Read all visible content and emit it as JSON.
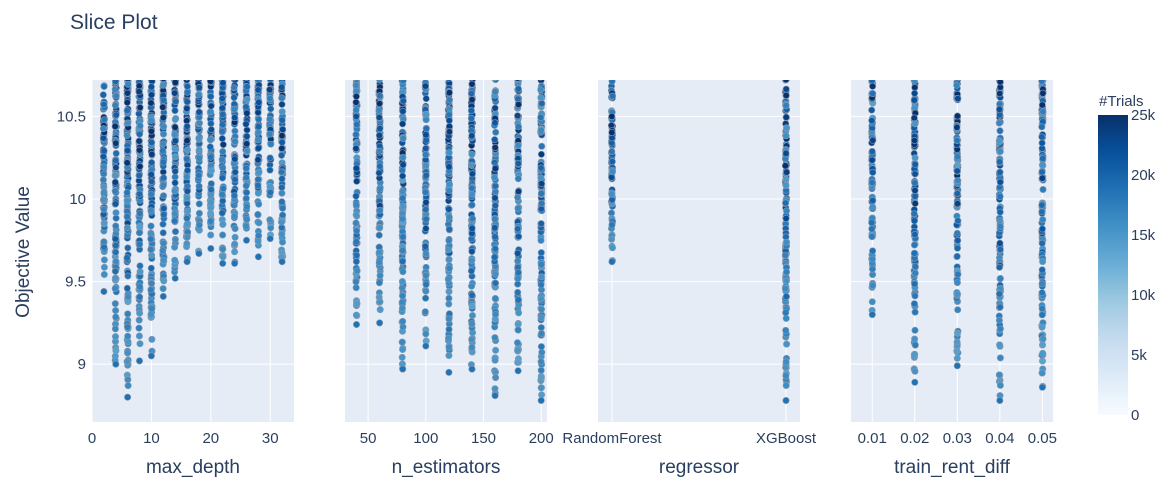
{
  "chart_data": {
    "type": "scatter",
    "title": "Slice Plot",
    "ylabel": "Objective Value",
    "ylim": [
      8.65,
      10.72
    ],
    "y_ticks": [
      "9",
      "9.5",
      "10",
      "10.5"
    ],
    "colorbar": {
      "title": "#Trials",
      "range": [
        0,
        25000
      ],
      "tick_labels": [
        "0",
        "5k",
        "10k",
        "15k",
        "20k",
        "25k"
      ],
      "colors": [
        "#f7fbff",
        "#deebf7",
        "#c6dbef",
        "#9ecae1",
        "#6baed6",
        "#4292c6",
        "#2171b5",
        "#08519c",
        "#08306b"
      ]
    },
    "panels": [
      {
        "xlabel": "max_depth",
        "x_axis": "linear",
        "xlim": [
          0,
          34
        ],
        "x_ticks": [
          "0",
          "10",
          "20",
          "30"
        ],
        "columns": [
          {
            "x": 2,
            "min_y": 9.44
          },
          {
            "x": 4,
            "min_y": 9.0
          },
          {
            "x": 6,
            "min_y": 8.8
          },
          {
            "x": 8,
            "min_y": 9.02
          },
          {
            "x": 10,
            "min_y": 9.05
          },
          {
            "x": 12,
            "min_y": 9.41
          },
          {
            "x": 14,
            "min_y": 9.52
          },
          {
            "x": 16,
            "min_y": 9.62
          },
          {
            "x": 18,
            "min_y": 9.67
          },
          {
            "x": 20,
            "min_y": 9.7
          },
          {
            "x": 22,
            "min_y": 9.61
          },
          {
            "x": 24,
            "min_y": 9.61
          },
          {
            "x": 26,
            "min_y": 9.75
          },
          {
            "x": 28,
            "min_y": 9.65
          },
          {
            "x": 30,
            "min_y": 9.76
          },
          {
            "x": 32,
            "min_y": 9.62
          }
        ]
      },
      {
        "xlabel": "n_estimators",
        "x_axis": "linear",
        "xlim": [
          30,
          205
        ],
        "x_ticks": [
          "50",
          "100",
          "150",
          "200"
        ],
        "columns": [
          {
            "x": 40,
            "min_y": 9.24
          },
          {
            "x": 60,
            "min_y": 9.25
          },
          {
            "x": 80,
            "min_y": 8.97
          },
          {
            "x": 100,
            "min_y": 9.11
          },
          {
            "x": 120,
            "min_y": 8.95
          },
          {
            "x": 140,
            "min_y": 8.97
          },
          {
            "x": 160,
            "min_y": 8.81
          },
          {
            "x": 180,
            "min_y": 8.96
          },
          {
            "x": 200,
            "min_y": 8.78
          }
        ]
      },
      {
        "xlabel": "regressor",
        "x_axis": "category",
        "categories": [
          "RandomForest",
          "XGBoost"
        ],
        "x_ticks": [
          "RandomForest",
          "XGBoost"
        ],
        "columns": [
          {
            "x": "RandomForest",
            "min_y": 9.62
          },
          {
            "x": "XGBoost",
            "min_y": 8.78
          }
        ]
      },
      {
        "xlabel": "train_rent_diff",
        "x_axis": "linear",
        "xlim": [
          0.005,
          0.0525
        ],
        "x_ticks": [
          "0.01",
          "0.02",
          "0.03",
          "0.04",
          "0.05"
        ],
        "columns": [
          {
            "x": 0.01,
            "min_y": 9.3
          },
          {
            "x": 0.02,
            "min_y": 8.89
          },
          {
            "x": 0.03,
            "min_y": 8.99
          },
          {
            "x": 0.04,
            "min_y": 8.78
          },
          {
            "x": 0.05,
            "min_y": 8.86
          }
        ]
      }
    ]
  }
}
